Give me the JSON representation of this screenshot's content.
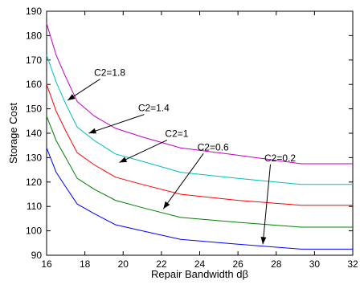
{
  "chart_data": {
    "type": "line",
    "title": "",
    "xlabel": "Repair Bandwidth dβ",
    "ylabel": "Storage Cost",
    "xlim": [
      16,
      32
    ],
    "ylim": [
      90,
      190
    ],
    "xticks": [
      16,
      18,
      20,
      22,
      24,
      26,
      28,
      30,
      32
    ],
    "yticks": [
      90,
      100,
      110,
      120,
      130,
      140,
      150,
      160,
      170,
      180,
      190
    ],
    "grid": false,
    "legend": "none",
    "series": [
      {
        "color": "#0000ff",
        "x": [
          16,
          16.5,
          17,
          17.6,
          18.5,
          19.6,
          21,
          23,
          26,
          29.3,
          32
        ],
        "y": [
          134,
          124,
          118,
          111,
          107,
          102.5,
          100,
          96.5,
          94.5,
          92.5,
          92.5
        ]
      },
      {
        "color": "#008000",
        "x": [
          16,
          16.5,
          17,
          17.6,
          18.5,
          19.6,
          21,
          23,
          26,
          29.3,
          32
        ],
        "y": [
          147,
          137,
          130,
          121.5,
          117,
          112.5,
          109.5,
          105.5,
          103.5,
          101.5,
          101.5
        ]
      },
      {
        "color": "#ff0000",
        "x": [
          16,
          16.5,
          17,
          17.6,
          18.5,
          19.6,
          21,
          23,
          26,
          29.3,
          32
        ],
        "y": [
          160,
          149,
          141,
          132,
          127,
          122,
          119,
          115,
          112.5,
          110.5,
          110.5
        ]
      },
      {
        "color": "#00bfbf",
        "x": [
          16,
          16.5,
          17,
          17.6,
          18.5,
          19.6,
          21,
          23,
          26,
          29.3,
          32
        ],
        "y": [
          172,
          161,
          152,
          142.5,
          137,
          131.5,
          128.5,
          124,
          121.5,
          119,
          119
        ]
      },
      {
        "color": "#bf00bf",
        "x": [
          16,
          16.5,
          17,
          17.6,
          18.5,
          19.6,
          21,
          23,
          26,
          29.3,
          32
        ],
        "y": [
          185,
          172,
          163,
          153,
          147,
          142,
          138.5,
          134,
          131,
          127.5,
          127.5
        ]
      }
    ],
    "annotations": [
      {
        "text": "C2=1.8",
        "text_at": [
          19.3,
          163.5
        ],
        "arrow_to": [
          17.1,
          153.5
        ]
      },
      {
        "text": "C2=1.4",
        "text_at": [
          21.6,
          149
        ],
        "arrow_to": [
          18.2,
          140
        ]
      },
      {
        "text": "C2=1",
        "text_at": [
          22.8,
          138.5
        ],
        "arrow_to": [
          19.8,
          128
        ]
      },
      {
        "text": "C2=0.6",
        "text_at": [
          24.7,
          133
        ],
        "arrow_to": [
          22.1,
          109
        ]
      },
      {
        "text": "C2=0.2",
        "text_at": [
          28.2,
          128.5
        ],
        "arrow_to": [
          27.3,
          94.5
        ]
      }
    ]
  }
}
